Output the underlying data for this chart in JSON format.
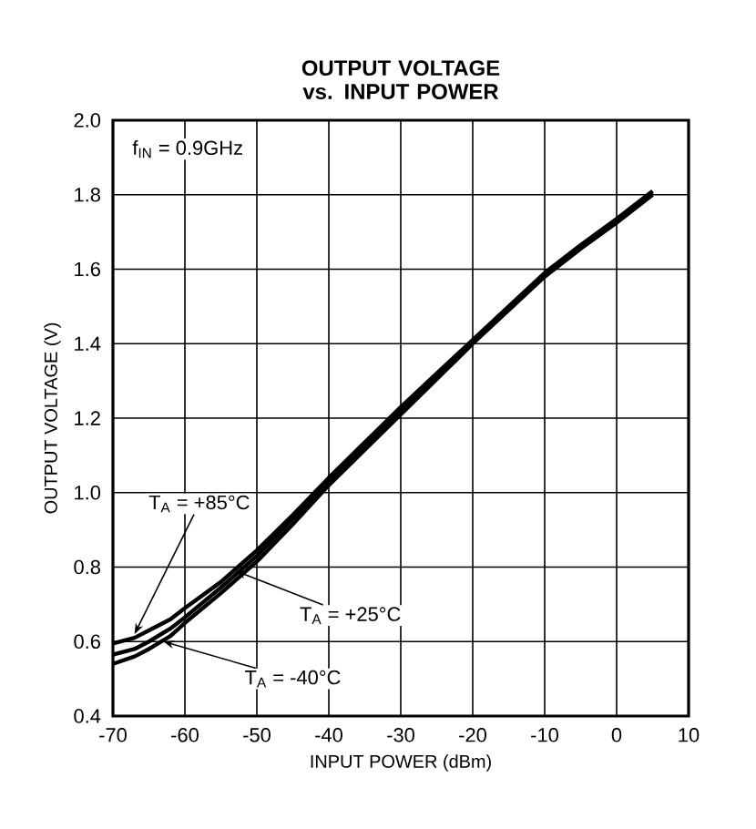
{
  "chart_data": {
    "type": "line",
    "title": "OUTPUT VOLTAGE vs. INPUT POWER",
    "xlabel": "INPUT POWER (dBm)",
    "ylabel": "OUTPUT VOLTAGE (V)",
    "xlim": [
      -70,
      10
    ],
    "ylim": [
      0.4,
      2.0
    ],
    "xticks": [
      -70,
      -60,
      -50,
      -40,
      -30,
      -20,
      -10,
      0,
      10
    ],
    "yticks": [
      0.4,
      0.6,
      0.8,
      {
        "value": 1,
        "label": "1.0"
      },
      1.2,
      1.4,
      1.6,
      1.8,
      {
        "value": 2,
        "label": "2.0"
      }
    ],
    "grid": true,
    "marker": "none",
    "line_style": "solid",
    "series": [
      {
        "color": "#000000",
        "x": [
          -70,
          -67,
          -65,
          -62,
          -60,
          -55,
          -50,
          -45,
          -40,
          -35,
          -30,
          -25,
          -20,
          -15,
          -10,
          -5,
          0,
          5
        ],
        "values": [
          0.595,
          0.61,
          0.63,
          0.66,
          0.69,
          0.76,
          0.845,
          0.94,
          1.04,
          1.135,
          1.23,
          1.32,
          1.41,
          1.5,
          1.59,
          1.665,
          1.735,
          1.81
        ]
      },
      {
        "color": "#000000",
        "x": [
          -70,
          -67,
          -65,
          -62,
          -60,
          -55,
          -50,
          -45,
          -40,
          -35,
          -30,
          -25,
          -20,
          -15,
          -10,
          -5,
          0,
          5
        ],
        "values": [
          0.565,
          0.58,
          0.6,
          0.635,
          0.665,
          0.745,
          0.83,
          0.93,
          1.03,
          1.125,
          1.22,
          1.315,
          1.405,
          1.495,
          1.585,
          1.66,
          1.73,
          1.805
        ]
      },
      {
        "color": "#000000",
        "x": [
          -70,
          -67,
          -65,
          -62,
          -60,
          -55,
          -50,
          -45,
          -40,
          -35,
          -30,
          -25,
          -20,
          -15,
          -10,
          -5,
          0,
          5
        ],
        "values": [
          0.54,
          0.56,
          0.58,
          0.615,
          0.65,
          0.73,
          0.815,
          0.915,
          1.02,
          1.115,
          1.21,
          1.305,
          1.4,
          1.49,
          1.58,
          1.655,
          1.725,
          1.8
        ]
      }
    ],
    "annotations": [
      "f$_{IN}$ = 0.9GHz",
      {
        "text": "T$_{A}$ = +85°C",
        "x": -67,
        "y": 0.62
      },
      {
        "text": "T$_{A}$ = +25°C",
        "x": -53,
        "y": 0.79
      },
      {
        "text": "T$_{A}$ = -40°C",
        "x": -63,
        "y": 0.6
      }
    ]
  }
}
